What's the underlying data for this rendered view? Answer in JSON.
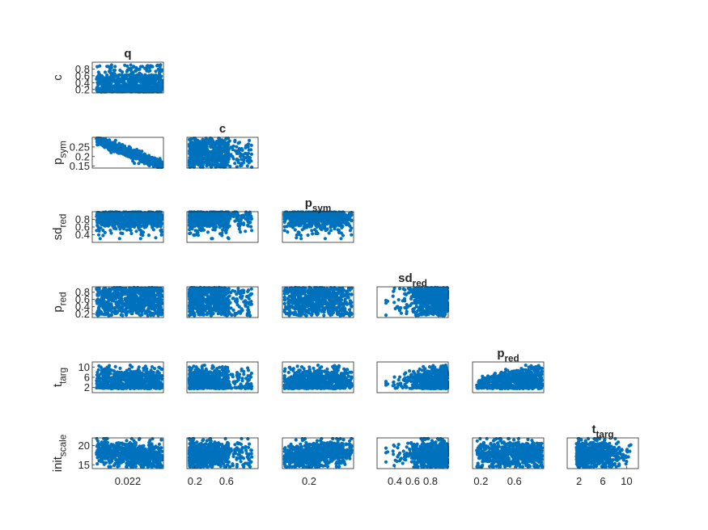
{
  "figure": {
    "background": "#ffffff",
    "marker_color": "#0072bd",
    "axis_color": "#262626",
    "text_color": "#262626"
  },
  "chart_data": {
    "type": "scatter",
    "layout": "lower-triangular scatter matrix",
    "grid": false,
    "variables": [
      "q",
      "c",
      "p_sym",
      "sd_red",
      "p_red",
      "t_targ",
      "init_scale"
    ],
    "row_labels": [
      {
        "main": "c",
        "sub": ""
      },
      {
        "main": "p",
        "sub": "sym"
      },
      {
        "main": "sd",
        "sub": "red"
      },
      {
        "main": "p",
        "sub": "red"
      },
      {
        "main": "t",
        "sub": "targ"
      },
      {
        "main": "init",
        "sub": "scale"
      }
    ],
    "column_titles": [
      {
        "main": "q",
        "sub": ""
      },
      {
        "main": "c",
        "sub": ""
      },
      {
        "main": "p",
        "sub": "sym"
      },
      {
        "main": "sd",
        "sub": "red"
      },
      {
        "main": "p",
        "sub": "red"
      },
      {
        "main": "t",
        "sub": "targ"
      }
    ],
    "y_ticks": [
      [
        {
          "v": 0.2,
          "label": "0.2"
        },
        {
          "v": 0.4,
          "label": "0.4"
        },
        {
          "v": 0.6,
          "label": "0.6"
        },
        {
          "v": 0.8,
          "label": "0.8"
        }
      ],
      [
        {
          "v": 0.15,
          "label": "0.15"
        },
        {
          "v": 0.2,
          "label": "0.2"
        },
        {
          "v": 0.25,
          "label": "0.25"
        }
      ],
      [
        {
          "v": 0.4,
          "label": "0.4"
        },
        {
          "v": 0.6,
          "label": "0.6"
        },
        {
          "v": 0.8,
          "label": "0.8"
        }
      ],
      [
        {
          "v": 0.2,
          "label": "0.2"
        },
        {
          "v": 0.4,
          "label": "0.4"
        },
        {
          "v": 0.6,
          "label": "0.6"
        },
        {
          "v": 0.8,
          "label": "0.8"
        }
      ],
      [
        {
          "v": 2,
          "label": "2"
        },
        {
          "v": 6,
          "label": "6"
        },
        {
          "v": 10,
          "label": "10"
        }
      ],
      [
        {
          "v": 15,
          "label": "15"
        },
        {
          "v": 20,
          "label": "20"
        }
      ]
    ],
    "x_ticks": [
      [
        {
          "v": 0.022,
          "label": "0.022"
        }
      ],
      [
        {
          "v": 0.2,
          "label": "0.2"
        },
        {
          "v": 0.6,
          "label": "0.6"
        }
      ],
      [
        {
          "v": 0.2,
          "label": "0.2"
        }
      ],
      [
        {
          "v": 0.4,
          "label": "0.4"
        },
        {
          "v": 0.6,
          "label": "0.6"
        },
        {
          "v": 0.8,
          "label": "0.8"
        }
      ],
      [
        {
          "v": 0.2,
          "label": "0.2"
        },
        {
          "v": 0.6,
          "label": "0.6"
        }
      ],
      [
        {
          "v": 2,
          "label": "2"
        },
        {
          "v": 6,
          "label": "6"
        },
        {
          "v": 10,
          "label": "10"
        }
      ]
    ],
    "ranges": {
      "q": [
        0.0195,
        0.0245
      ],
      "c": [
        0.1,
        1.0
      ],
      "p_sym": [
        0.14,
        0.3
      ],
      "sd_red": [
        0.2,
        1.0
      ],
      "p_red": [
        0.1,
        0.95
      ],
      "t_targ": [
        0,
        12
      ],
      "init_scale": [
        14,
        22
      ]
    },
    "point_count": 700
  }
}
